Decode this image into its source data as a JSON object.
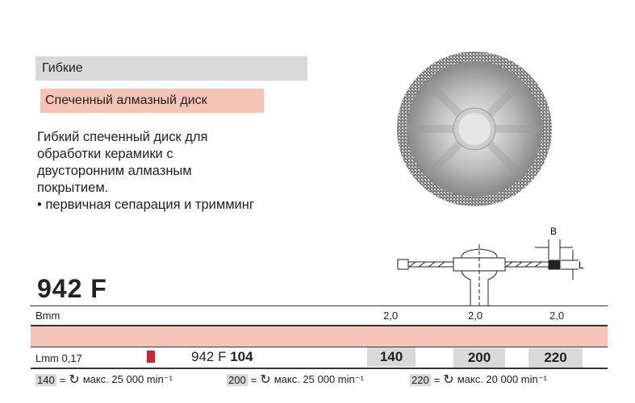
{
  "category": "Гибкие",
  "product_name": "Спеченный алмазный диск",
  "description": [
    "Гибкий спеченный диск для",
    "обработки керамики с",
    "двусторонним алмазным",
    "покрытием.",
    "• первичная сепарация и тримминг"
  ],
  "model": "942 F",
  "diagram_labels": {
    "b": "B",
    "l": "L"
  },
  "table": {
    "b_label": "Bmm",
    "b_values": [
      "2,0",
      "2,0",
      "2,0"
    ],
    "l_label": "Lmm 0,17",
    "code_prefix": "942 F ",
    "code_bold": "104",
    "sizes": [
      "140",
      "200",
      "220"
    ],
    "marker_color": "#d7202a",
    "highlight_color": "#f4c4b6"
  },
  "speeds": [
    {
      "size": "140",
      "eq": "=",
      "text": "макс. 25 000 min⁻¹"
    },
    {
      "size": "200",
      "eq": "=",
      "text": "макс. 25 000 min⁻¹"
    },
    {
      "size": "220",
      "eq": "=",
      "text": "макс. 20 000 min⁻¹"
    }
  ]
}
